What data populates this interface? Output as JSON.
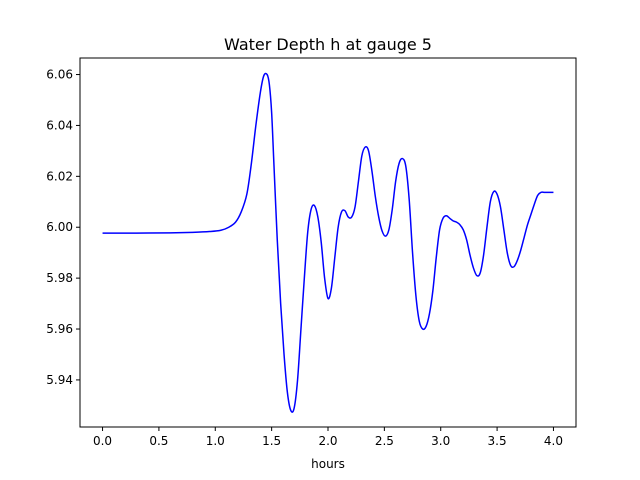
{
  "chart_data": {
    "type": "line",
    "title": "Water Depth h at gauge 5",
    "xlabel": "hours",
    "ylabel": "",
    "xlim": [
      -0.2,
      4.2
    ],
    "ylim": [
      5.9215,
      6.0665
    ],
    "grid": false,
    "legend": "none",
    "xticks": [
      0.0,
      0.5,
      1.0,
      1.5,
      2.0,
      2.5,
      3.0,
      3.5,
      4.0
    ],
    "xtick_labels": [
      "0.0",
      "0.5",
      "1.0",
      "1.5",
      "2.0",
      "2.5",
      "3.0",
      "3.5",
      "4.0"
    ],
    "yticks": [
      5.94,
      5.96,
      5.98,
      6.0,
      6.02,
      6.04,
      6.06
    ],
    "ytick_labels": [
      "5.94",
      "5.96",
      "5.98",
      "6.00",
      "6.02",
      "6.04",
      "6.06"
    ],
    "series": [
      {
        "color": "#0000ff",
        "x": [
          0.0,
          0.3,
          0.6,
          0.8,
          0.95,
          1.05,
          1.12,
          1.18,
          1.23,
          1.28,
          1.32,
          1.36,
          1.4,
          1.43,
          1.46,
          1.48,
          1.5,
          1.52,
          1.55,
          1.58,
          1.61,
          1.64,
          1.67,
          1.7,
          1.73,
          1.76,
          1.79,
          1.82,
          1.85,
          1.88,
          1.91,
          1.94,
          1.97,
          2.0,
          2.03,
          2.06,
          2.09,
          2.12,
          2.15,
          2.18,
          2.21,
          2.24,
          2.27,
          2.3,
          2.33,
          2.36,
          2.39,
          2.42,
          2.45,
          2.48,
          2.51,
          2.54,
          2.57,
          2.6,
          2.63,
          2.66,
          2.69,
          2.72,
          2.75,
          2.78,
          2.81,
          2.84,
          2.87,
          2.9,
          2.93,
          2.96,
          2.99,
          3.02,
          3.05,
          3.08,
          3.11,
          3.14,
          3.17,
          3.2,
          3.23,
          3.26,
          3.29,
          3.32,
          3.35,
          3.38,
          3.41,
          3.44,
          3.47,
          3.5,
          3.53,
          3.56,
          3.59,
          3.62,
          3.65,
          3.68,
          3.71,
          3.74,
          3.77,
          3.8,
          3.83,
          3.86,
          3.89,
          3.92,
          3.95,
          3.98,
          4.0
        ],
        "y": [
          5.9977,
          5.9977,
          5.9978,
          5.998,
          5.9983,
          5.9988,
          6.0,
          6.002,
          6.006,
          6.013,
          6.025,
          6.04,
          6.053,
          6.0595,
          6.06,
          6.056,
          6.045,
          6.025,
          5.995,
          5.97,
          5.95,
          5.935,
          5.928,
          5.929,
          5.94,
          5.96,
          5.98,
          5.998,
          6.007,
          6.0085,
          6.004,
          5.994,
          5.98,
          5.972,
          5.976,
          5.988,
          6.0,
          6.006,
          6.0065,
          6.004,
          6.004,
          6.008,
          6.018,
          6.028,
          6.0315,
          6.03,
          6.022,
          6.012,
          6.004,
          5.9985,
          5.9965,
          5.999,
          6.007,
          6.018,
          6.025,
          6.027,
          6.024,
          6.011,
          5.99,
          5.973,
          5.963,
          5.96,
          5.961,
          5.966,
          5.975,
          5.988,
          5.999,
          6.0035,
          6.0045,
          6.0035,
          6.0025,
          6.002,
          6.001,
          5.999,
          5.995,
          5.989,
          5.984,
          5.981,
          5.982,
          5.989,
          6.0,
          6.01,
          6.014,
          6.013,
          6.008,
          5.999,
          5.99,
          5.985,
          5.9845,
          5.987,
          5.991,
          5.996,
          6.001,
          6.005,
          6.009,
          6.0125,
          6.0137,
          6.0137,
          6.0137,
          6.0137,
          6.0137
        ]
      }
    ]
  }
}
